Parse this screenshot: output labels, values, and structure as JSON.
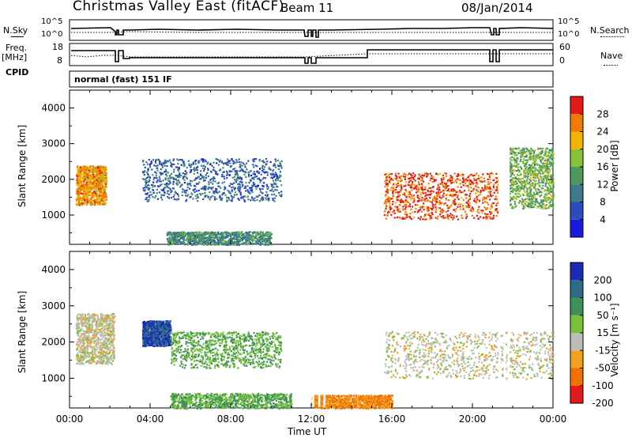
{
  "header": {
    "title": "Christmas Valley East (fitACF)",
    "beam": "Beam 11",
    "date": "08/Jan/2014"
  },
  "status_panels": {
    "nsky_label": "N.Sky",
    "nsky_ticks": [
      "10^5",
      "10^0"
    ],
    "nsearch_label": "N.Search",
    "nsearch_ticks": [
      "10^5",
      "10^0"
    ],
    "freq_label_1": "Freq.",
    "freq_label_2": "[MHz]",
    "freq_ticks": [
      "18",
      "8"
    ],
    "nave_label": "Nave",
    "nave_ticks": [
      "60",
      "0"
    ],
    "cpid_label": "CPID",
    "cpid_value": "normal (fast) 151 IF"
  },
  "colors": {
    "power_scale": [
      "#1a1adf",
      "#2d4bbb",
      "#3c7a8c",
      "#4e9a5c",
      "#86c23a",
      "#f2b400",
      "#f27a00",
      "#e31a1a"
    ],
    "velocity_scale": [
      "#1a2bb8",
      "#2f6a8a",
      "#3f8f5a",
      "#77c23a",
      "#bdbdb8",
      "#f2a020",
      "#f27000",
      "#e31a1a"
    ]
  },
  "chart_data": [
    {
      "type": "heatmap",
      "panel": "power",
      "xlabel": "",
      "ylabel": "Slant Range [km]",
      "x_range_hours": [
        0,
        24
      ],
      "ylim": [
        180,
        4500
      ],
      "y_ticks": [
        1000,
        2000,
        3000,
        4000
      ],
      "colorbar_label": "Power [dB]",
      "colorbar_range": [
        0,
        32
      ],
      "colorbar_ticks": [
        4,
        8,
        12,
        16,
        20,
        24,
        28
      ],
      "features": [
        {
          "t_start": 0.3,
          "t_end": 1.8,
          "range_km": [
            1300,
            2400
          ],
          "level": 24
        },
        {
          "t_start": 3.6,
          "t_end": 10.5,
          "range_km": [
            1400,
            2600
          ],
          "level": 8
        },
        {
          "t_start": 4.8,
          "t_end": 10.0,
          "range_km": [
            180,
            550
          ],
          "level": 12
        },
        {
          "t_start": 15.6,
          "t_end": 21.3,
          "range_km": [
            900,
            2200
          ],
          "level": 28
        },
        {
          "t_start": 21.8,
          "t_end": 24.0,
          "range_km": [
            1200,
            2900
          ],
          "level": 16
        }
      ]
    },
    {
      "type": "heatmap",
      "panel": "velocity",
      "xlabel": "Time UT",
      "ylabel": "Slant Range [km]",
      "x_range_hours": [
        0,
        24
      ],
      "x_tick_labels": [
        "00:00",
        "04:00",
        "08:00",
        "12:00",
        "16:00",
        "20:00",
        "00:00"
      ],
      "ylim": [
        180,
        4500
      ],
      "y_ticks": [
        1000,
        2000,
        3000,
        4000
      ],
      "colorbar_label": "Velocity [m s⁻¹]",
      "colorbar_ticks": [
        "200",
        "100",
        "50",
        "15",
        "-15",
        "-50",
        "-100",
        "-200"
      ],
      "features": [
        {
          "t_start": 0.3,
          "t_end": 2.2,
          "range_km": [
            1400,
            2800
          ],
          "velocity": 0
        },
        {
          "t_start": 3.6,
          "t_end": 5.0,
          "range_km": [
            1900,
            2600
          ],
          "velocity": 200
        },
        {
          "t_start": 5.0,
          "t_end": 10.5,
          "range_km": [
            1300,
            2300
          ],
          "velocity": 50
        },
        {
          "t_start": 5.0,
          "t_end": 11.0,
          "range_km": [
            180,
            600
          ],
          "velocity": 50
        },
        {
          "t_start": 12.0,
          "t_end": 16.0,
          "range_km": [
            180,
            550
          ],
          "velocity": -50
        },
        {
          "t_start": 15.6,
          "t_end": 24.0,
          "range_km": [
            1000,
            2300
          ],
          "velocity": 0
        }
      ]
    }
  ]
}
